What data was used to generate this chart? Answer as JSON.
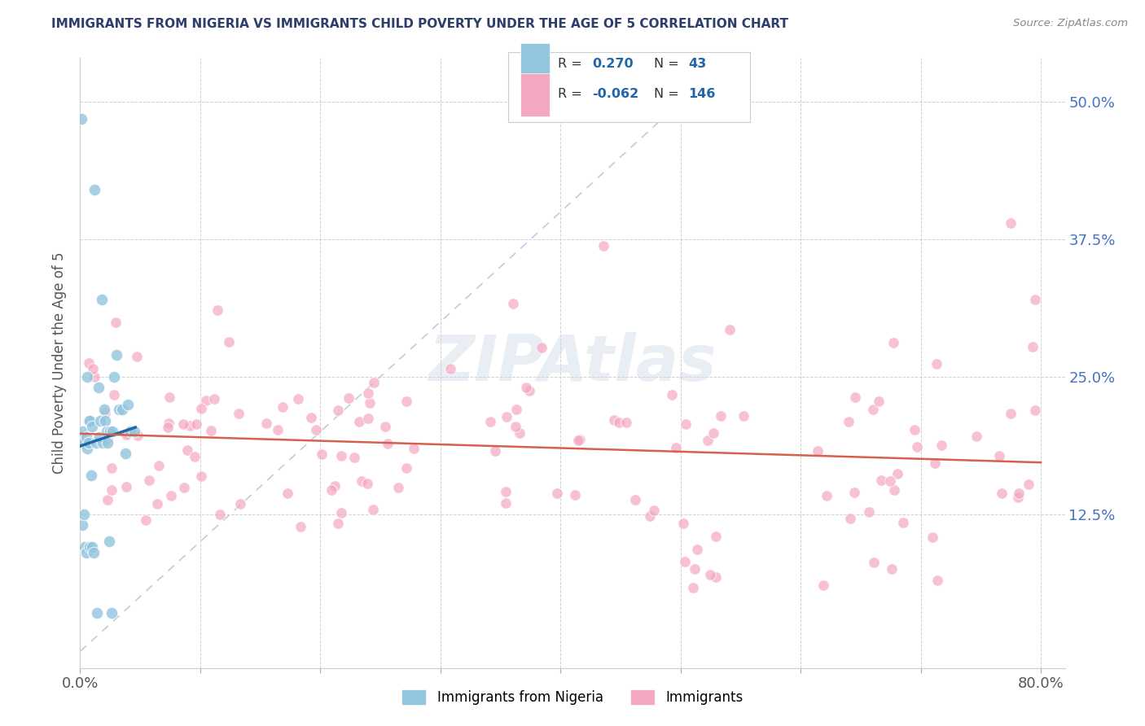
{
  "title": "IMMIGRANTS FROM NIGERIA VS IMMIGRANTS CHILD POVERTY UNDER THE AGE OF 5 CORRELATION CHART",
  "source": "Source: ZipAtlas.com",
  "ylabel": "Child Poverty Under the Age of 5",
  "legend1_label": "Immigrants from Nigeria",
  "legend2_label": "Immigrants",
  "r1": 0.27,
  "n1": 43,
  "r2": -0.062,
  "n2": 146,
  "xlim": [
    0.0,
    0.82
  ],
  "ylim": [
    -0.015,
    0.54
  ],
  "color_blue": "#92c5de",
  "color_blue_line": "#2166ac",
  "color_pink": "#f4a9c0",
  "color_pink_line": "#d6604d",
  "background": "#ffffff",
  "grid_color": "#d0d0d0",
  "title_color": "#2c3e6b",
  "ytick_color": "#4472c4",
  "ytick_vals": [
    0.125,
    0.25,
    0.375,
    0.5
  ],
  "ytick_labels": [
    "12.5%",
    "25.0%",
    "37.5%",
    "50.0%"
  ],
  "xtick_positions": [
    0.0,
    0.1,
    0.2,
    0.3,
    0.4,
    0.5,
    0.6,
    0.7,
    0.8
  ],
  "xtick_labels": [
    "0.0%",
    "",
    "",
    "",
    "",
    "",
    "",
    "",
    "80.0%"
  ]
}
